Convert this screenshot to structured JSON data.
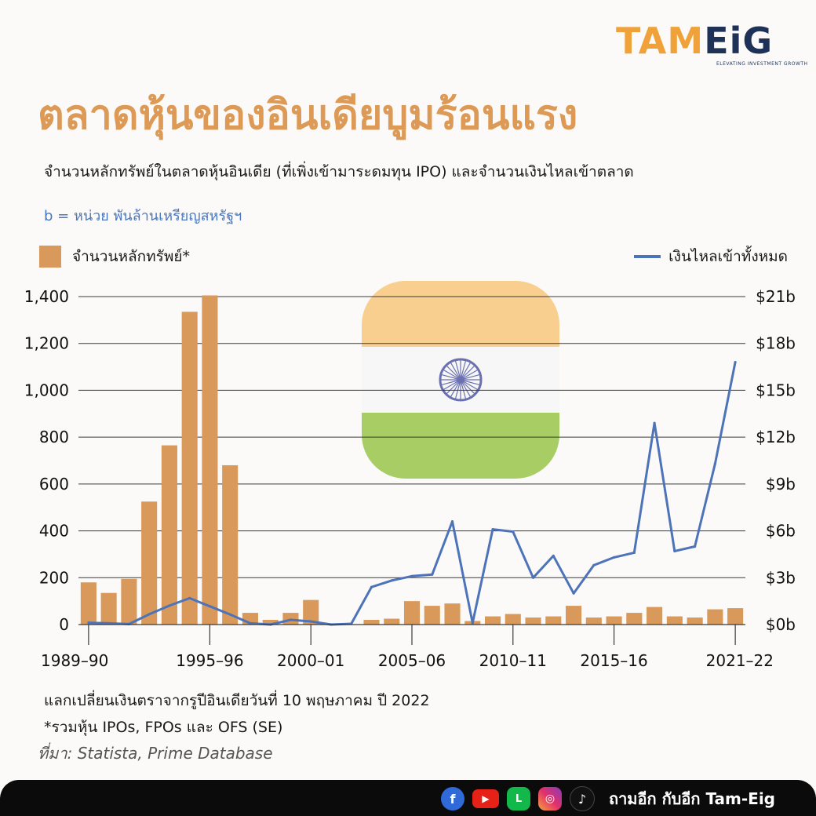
{
  "logo": {
    "part_a": "TAM",
    "part_b": "EiG",
    "tagline": "ELEVATING INVESTMENT GROWTH"
  },
  "title": "ตลาดหุ้นของอินเดียบูมร้อนแรง",
  "subtitle": "จำนวนหลักทรัพย์ในตลาดหุ้นอินเดีย (ที่เพิ่งเข้ามาระดมทุน IPO) และจำนวนเงินไหลเข้าตลาด",
  "unit_note": "b = หน่วย พันล้านเหรียญสหรัฐฯ",
  "notes": {
    "exchange": "แลกเปลี่ยนเงินตราจากรูปีอินเดียวันที่ 10 พฤษภาคม ปี 2022",
    "footnote": "*รวมหุ้น IPOs, FPOs และ OFS (SE)",
    "source": "ที่มา: Statista, Prime Database"
  },
  "footer": {
    "text": "ถามอีก กับอีก Tam-Eig",
    "icons": [
      "facebook-icon",
      "youtube-icon",
      "line-icon",
      "instagram-icon",
      "tiktok-icon"
    ]
  },
  "colors": {
    "bar": "#d9995a",
    "line": "#4d73b8",
    "title": "#dc9a56",
    "flag_saffron": "#f9cf8f",
    "flag_white": "#f7f7f7",
    "flag_green": "#a8cd64",
    "chakra": "#6a70b0"
  },
  "chart_data": {
    "type": "bar",
    "combo": "bar+line (dual axis)",
    "legend": {
      "bars": "จำนวนหลักทรัพย์*",
      "line": "เงินไหลเข้าทั้งหมด"
    },
    "categories": [
      "1989-90",
      "1990-91",
      "1991-92",
      "1992-93",
      "1993-94",
      "1994-95",
      "1995-96",
      "1996-97",
      "1997-98",
      "1998-99",
      "1999-00",
      "2000-01",
      "2001-02",
      "2002-03",
      "2003-04",
      "2004-05",
      "2005-06",
      "2006-07",
      "2007-08",
      "2008-09",
      "2009-10",
      "2010-11",
      "2011-12",
      "2012-13",
      "2013-14",
      "2014-15",
      "2015-16",
      "2016-17",
      "2017-18",
      "2018-19",
      "2019-20",
      "2020-21",
      "2021-22"
    ],
    "x_tick_labels": [
      "1989–90",
      "1995–96",
      "2000–01",
      "2005–06",
      "2010–11",
      "2015–16",
      "2021–22"
    ],
    "x_tick_categories": [
      "1989-90",
      "1995-96",
      "2000-01",
      "2005-06",
      "2010-11",
      "2015-16",
      "2021-22"
    ],
    "series": [
      {
        "name": "จำนวนหลักทรัพย์*",
        "axis": "left",
        "type": "bar",
        "values": [
          180,
          135,
          195,
          525,
          765,
          1335,
          1405,
          680,
          50,
          20,
          50,
          105,
          0,
          0,
          20,
          25,
          100,
          80,
          90,
          15,
          35,
          45,
          30,
          35,
          80,
          30,
          35,
          50,
          75,
          35,
          30,
          65,
          70
        ]
      },
      {
        "name": "เงินไหลเข้าทั้งหมด",
        "axis": "right",
        "type": "line",
        "values": [
          0.12,
          0.08,
          0.03,
          0.66,
          1.21,
          1.69,
          1.17,
          0.65,
          0.08,
          0.0,
          0.3,
          0.2,
          0.0,
          0.05,
          2.4,
          2.82,
          3.1,
          3.2,
          6.6,
          0.1,
          6.1,
          5.95,
          3.0,
          4.4,
          2.0,
          3.8,
          4.3,
          4.6,
          12.9,
          4.7,
          5.0,
          10.3,
          16.8
        ]
      }
    ],
    "left_axis": {
      "ylim": [
        0,
        1400
      ],
      "ticks": [
        0,
        200,
        400,
        600,
        800,
        1000,
        1200,
        1400
      ],
      "tick_labels": [
        "0",
        "200",
        "400",
        "600",
        "800",
        "1,000",
        "1,200",
        "1,400"
      ]
    },
    "right_axis": {
      "ylim": [
        0,
        21
      ],
      "ticks": [
        0,
        3,
        6,
        9,
        12,
        15,
        18,
        21
      ],
      "tick_labels": [
        "$0b",
        "$3b",
        "$6b",
        "$9b",
        "$12b",
        "$15b",
        "$18b",
        "$21b"
      ]
    },
    "grid": true,
    "title": "ตลาดหุ้นของอินเดียบูมร้อนแรง"
  }
}
